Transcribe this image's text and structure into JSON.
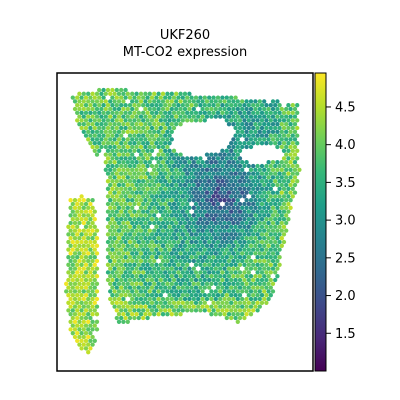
{
  "chart_data": {
    "type": "scatter",
    "title": "UKF260",
    "subtitle": "MT-CO2 expression",
    "xlabel": "",
    "ylabel": "",
    "xlim": [
      0,
      100
    ],
    "ylim": [
      0,
      100
    ],
    "x_ticks_shown": false,
    "y_ticks_shown": false,
    "grid": false,
    "legend": "none",
    "colormap": "viridis",
    "colorbar": {
      "min": 1.0,
      "max": 4.95,
      "ticks": [
        1.5,
        2.0,
        2.5,
        3.0,
        3.5,
        4.0,
        4.5
      ],
      "tick_labels": [
        "1.5",
        "2.0",
        "2.5",
        "3.0",
        "3.5",
        "4.0",
        "4.5"
      ],
      "colors": [
        "#440154",
        "#482878",
        "#3e4989",
        "#31688e",
        "#26828e",
        "#1f9e89",
        "#35b779",
        "#6ece58",
        "#b5de2b",
        "#fde725"
      ]
    },
    "points_summary": {
      "shape": "hexagonal spot grid covering a tissue section",
      "value_range": [
        1.0,
        4.9
      ],
      "typical_value": 3.8
    }
  }
}
